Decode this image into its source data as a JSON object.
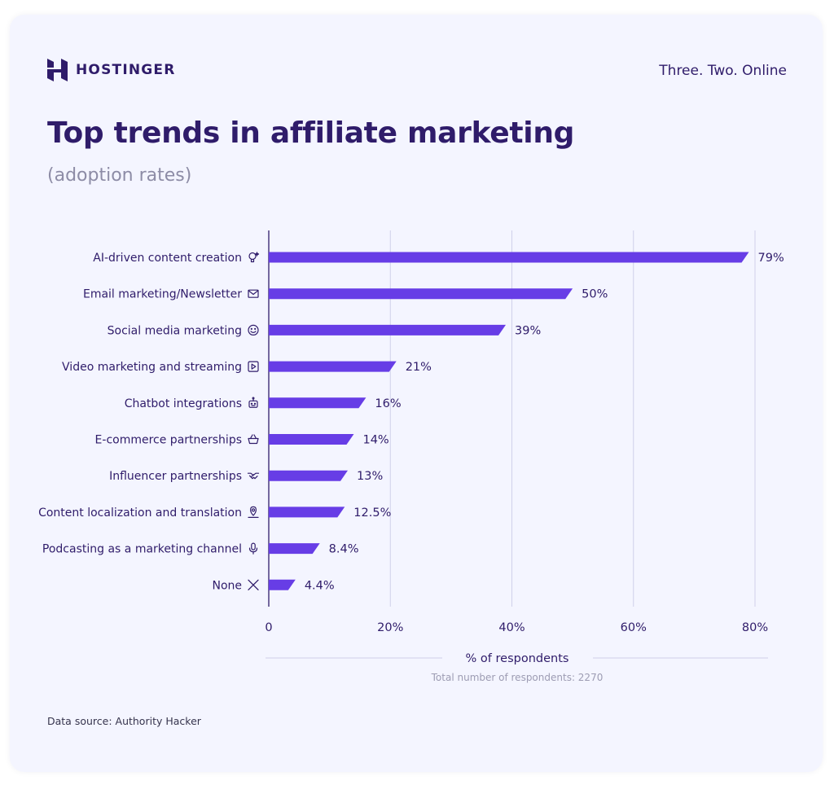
{
  "brand": {
    "logo_text": "HOSTINGER",
    "tagline": "Three. Two. Online"
  },
  "chart_data": {
    "type": "bar",
    "orientation": "horizontal",
    "title": "Top trends in affiliate marketing",
    "subtitle": "(adoption rates)",
    "categories": [
      "AI-driven content creation",
      "Email marketing/Newsletter",
      "Social media marketing",
      "Video marketing and streaming",
      "Chatbot integrations",
      "E-commerce partnerships",
      "Influencer partnerships",
      "Content localization and translation",
      "Podcasting as a marketing channel",
      "None"
    ],
    "category_icons": [
      "sparkle-bulb-icon",
      "envelope-icon",
      "smiley-icon",
      "play-icon",
      "robot-icon",
      "basket-icon",
      "handshake-icon",
      "location-pin-icon",
      "microphone-icon",
      "x-icon"
    ],
    "values": [
      79,
      50,
      39,
      21,
      16,
      14,
      13,
      12.5,
      8.4,
      4.4
    ],
    "value_labels": [
      "79%",
      "50%",
      "39%",
      "21%",
      "16%",
      "14%",
      "13%",
      "12.5%",
      "8.4%",
      "4.4%"
    ],
    "xlim": [
      0,
      80
    ],
    "x_ticks": [
      0,
      20,
      40,
      60,
      80
    ],
    "x_tick_labels": [
      "0",
      "20%",
      "40%",
      "60%",
      "80%"
    ],
    "xlabel": "% of respondents",
    "note": "Total number of respondents: 2270",
    "grid": true,
    "bar_color": "#673de6"
  },
  "source": "Data source: Authority Hacker"
}
